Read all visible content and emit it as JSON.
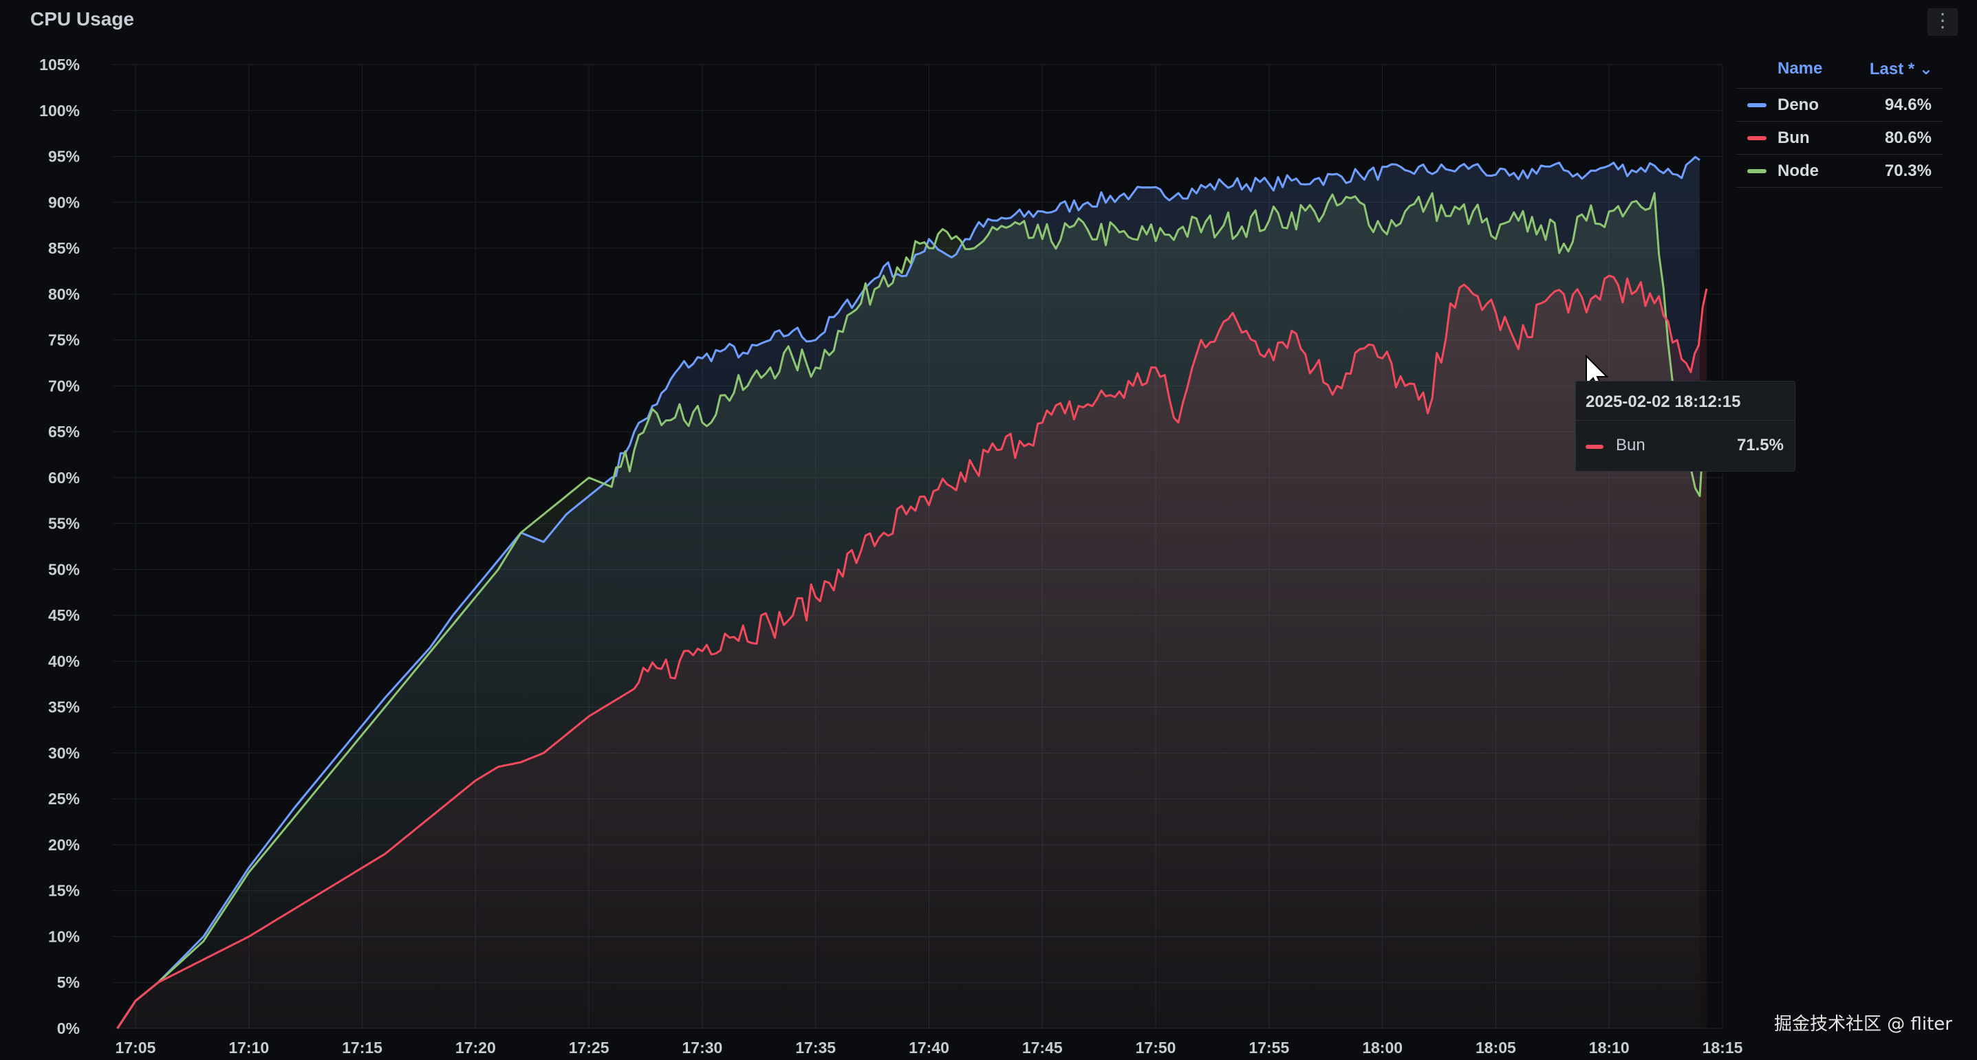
{
  "panel": {
    "title": "CPU Usage",
    "menu_icon": "kebab-menu-icon",
    "menu_label": "⋮"
  },
  "legend": {
    "name_header": "Name",
    "last_header": "Last * ⌄",
    "items": [
      {
        "name": "Deno",
        "value": "94.6%",
        "color": "#6e9fff"
      },
      {
        "name": "Bun",
        "value": "80.6%",
        "color": "#f2495c"
      },
      {
        "name": "Node",
        "value": "70.3%",
        "color": "#8dc572"
      }
    ]
  },
  "tooltip": {
    "time": "2025-02-02 18:12:15",
    "series": "Bun",
    "value": "71.5%",
    "color": "#f2495c"
  },
  "watermark": "掘金技术社区 @ fliter",
  "chart_data": {
    "type": "line",
    "title": "CPU Usage",
    "xlabel": "",
    "ylabel": "",
    "ylim": [
      0,
      105
    ],
    "y_ticks": [
      "0%",
      "5%",
      "10%",
      "15%",
      "20%",
      "25%",
      "30%",
      "35%",
      "40%",
      "45%",
      "50%",
      "55%",
      "60%",
      "65%",
      "70%",
      "75%",
      "80%",
      "85%",
      "90%",
      "95%",
      "100%",
      "105%"
    ],
    "x_ticks": [
      "17:05",
      "17:10",
      "17:15",
      "17:20",
      "17:25",
      "17:30",
      "17:35",
      "17:40",
      "17:45",
      "17:50",
      "17:55",
      "18:00",
      "18:05",
      "18:10",
      "18:15"
    ],
    "grid": true,
    "legend_position": "top-right",
    "x_unit": "minutes since 17:05",
    "series": [
      {
        "name": "Deno",
        "color": "#6e9fff",
        "points": [
          [
            -0.8,
            0
          ],
          [
            0,
            3
          ],
          [
            1,
            5
          ],
          [
            3,
            10
          ],
          [
            5,
            17.5
          ],
          [
            7,
            24
          ],
          [
            9,
            30
          ],
          [
            11,
            36
          ],
          [
            13,
            41.5
          ],
          [
            14,
            45
          ],
          [
            15,
            48
          ],
          [
            16,
            51
          ],
          [
            17,
            54
          ],
          [
            18,
            53
          ],
          [
            19,
            56
          ],
          [
            20,
            58
          ],
          [
            21,
            60
          ],
          [
            22,
            65
          ],
          [
            23,
            68
          ],
          [
            24,
            72
          ],
          [
            25,
            73
          ],
          [
            26,
            74
          ],
          [
            27,
            73.5
          ],
          [
            28,
            75
          ],
          [
            29,
            76
          ],
          [
            30,
            75
          ],
          [
            31,
            78
          ],
          [
            32,
            80
          ],
          [
            33,
            83
          ],
          [
            34,
            82
          ],
          [
            35,
            86
          ],
          [
            36,
            84
          ],
          [
            37,
            87
          ],
          [
            38,
            88
          ],
          [
            40,
            89
          ],
          [
            42,
            90
          ],
          [
            44,
            91
          ],
          [
            46,
            91
          ],
          [
            48,
            92
          ],
          [
            50,
            92
          ],
          [
            52,
            92.5
          ],
          [
            54,
            93
          ],
          [
            56,
            93.5
          ],
          [
            58,
            93.5
          ],
          [
            59,
            94
          ],
          [
            60,
            93
          ],
          [
            61,
            92.5
          ],
          [
            62,
            94
          ],
          [
            63,
            93.5
          ],
          [
            64,
            93
          ],
          [
            65,
            94
          ],
          [
            66,
            93.5
          ],
          [
            67,
            94
          ],
          [
            68,
            93
          ],
          [
            69,
            94.6
          ]
        ]
      },
      {
        "name": "Node",
        "color": "#8dc572",
        "points": [
          [
            -0.8,
            0
          ],
          [
            0,
            3
          ],
          [
            1,
            5
          ],
          [
            3,
            9.5
          ],
          [
            5,
            17
          ],
          [
            7,
            23
          ],
          [
            9,
            29
          ],
          [
            11,
            35
          ],
          [
            13,
            41
          ],
          [
            14,
            44
          ],
          [
            15,
            47
          ],
          [
            16,
            50
          ],
          [
            17,
            54
          ],
          [
            18,
            56
          ],
          [
            19,
            58
          ],
          [
            20,
            60
          ],
          [
            21,
            59
          ],
          [
            22,
            63
          ],
          [
            23,
            67
          ],
          [
            24,
            68
          ],
          [
            25,
            66
          ],
          [
            26,
            69
          ],
          [
            27,
            70
          ],
          [
            28,
            72
          ],
          [
            29,
            73
          ],
          [
            30,
            72
          ],
          [
            31,
            76
          ],
          [
            32,
            79
          ],
          [
            33,
            82
          ],
          [
            34,
            84
          ],
          [
            35,
            85
          ],
          [
            36,
            86
          ],
          [
            37,
            85
          ],
          [
            38,
            87
          ],
          [
            40,
            86
          ],
          [
            42,
            87
          ],
          [
            44,
            86
          ],
          [
            46,
            87
          ],
          [
            48,
            87.5
          ],
          [
            50,
            88
          ],
          [
            52,
            89
          ],
          [
            54,
            90
          ],
          [
            55,
            87
          ],
          [
            56,
            89
          ],
          [
            57,
            90
          ],
          [
            58,
            88.5
          ],
          [
            59,
            89
          ],
          [
            60,
            86
          ],
          [
            61,
            88
          ],
          [
            62,
            87.5
          ],
          [
            63,
            85.5
          ],
          [
            64,
            88
          ],
          [
            65,
            89
          ],
          [
            66,
            90
          ],
          [
            67,
            91
          ],
          [
            68,
            64
          ],
          [
            69,
            58
          ],
          [
            69.3,
            70.3
          ]
        ]
      },
      {
        "name": "Bun",
        "color": "#f2495c",
        "points": [
          [
            -0.8,
            0
          ],
          [
            0,
            3
          ],
          [
            1,
            5
          ],
          [
            3,
            7.5
          ],
          [
            5,
            10
          ],
          [
            7,
            13
          ],
          [
            9,
            16
          ],
          [
            11,
            19
          ],
          [
            12,
            21
          ],
          [
            13,
            23
          ],
          [
            14,
            25
          ],
          [
            15,
            27
          ],
          [
            16,
            28.5
          ],
          [
            17,
            29
          ],
          [
            18,
            30
          ],
          [
            19,
            32
          ],
          [
            20,
            34
          ],
          [
            22,
            37
          ],
          [
            24,
            40
          ],
          [
            26,
            43
          ],
          [
            28,
            44
          ],
          [
            29,
            45
          ],
          [
            30,
            47
          ],
          [
            31,
            50
          ],
          [
            32,
            52
          ],
          [
            33,
            54
          ],
          [
            34,
            56
          ],
          [
            35,
            57
          ],
          [
            36,
            59
          ],
          [
            37,
            61
          ],
          [
            38,
            63
          ],
          [
            39,
            64
          ],
          [
            40,
            66
          ],
          [
            41,
            67
          ],
          [
            42,
            68
          ],
          [
            43,
            69
          ],
          [
            44,
            70
          ],
          [
            45,
            72
          ],
          [
            46,
            66
          ],
          [
            47,
            75
          ],
          [
            48,
            77
          ],
          [
            49,
            76
          ],
          [
            50,
            74
          ],
          [
            51,
            76
          ],
          [
            52,
            72
          ],
          [
            53,
            70
          ],
          [
            54,
            74
          ],
          [
            55,
            73
          ],
          [
            56,
            70
          ],
          [
            57,
            67
          ],
          [
            58,
            79
          ],
          [
            59,
            80
          ],
          [
            60,
            78
          ],
          [
            61,
            74
          ],
          [
            62,
            79
          ],
          [
            63,
            80
          ],
          [
            64,
            78
          ],
          [
            65,
            82
          ],
          [
            66,
            80
          ],
          [
            67,
            79
          ],
          [
            68,
            75
          ],
          [
            68.6,
            71.5
          ],
          [
            69.3,
            80.6
          ]
        ]
      }
    ]
  }
}
